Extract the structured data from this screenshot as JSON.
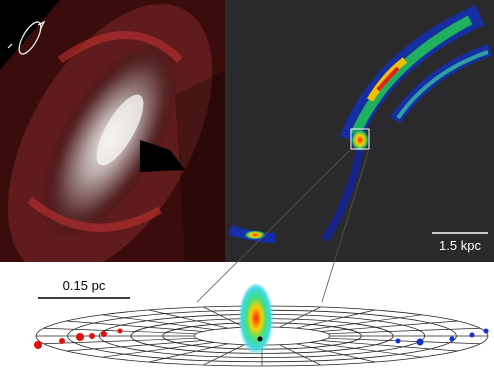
{
  "panels": {
    "right": {
      "scale_bar": "1.5 kpc"
    }
  },
  "diagram": {
    "scale_bar": "0.15 pc"
  }
}
